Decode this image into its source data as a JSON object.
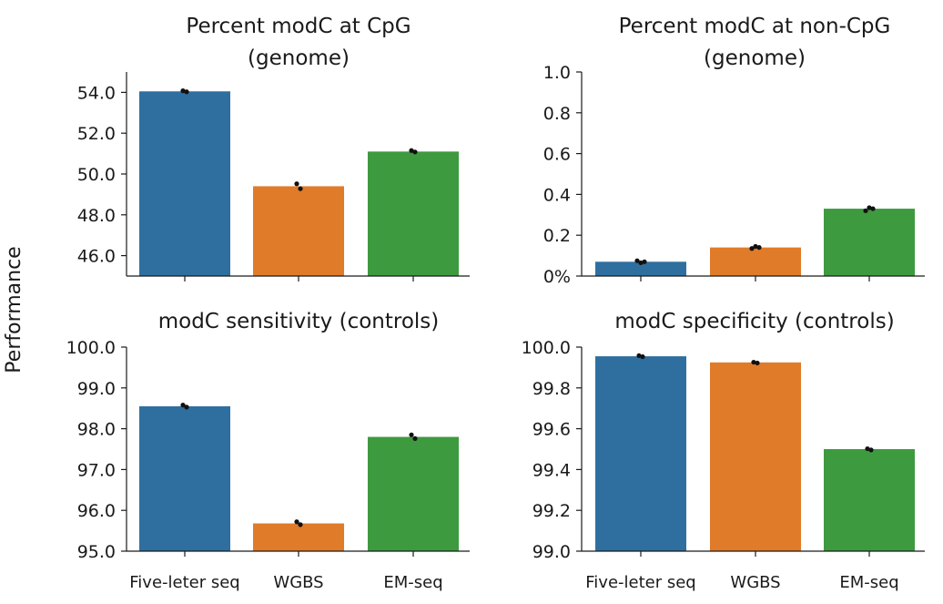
{
  "figure": {
    "ylabel": "Performance",
    "colors": {
      "Five-leter seq": "#2f6f9f",
      "WGBS": "#e07b2a",
      "EM-seq": "#3e9a3f"
    },
    "dot_color": "#111111"
  },
  "chart_data": [
    {
      "type": "bar",
      "title_lines": [
        "Percent modC at CpG",
        "(genome)"
      ],
      "categories": [
        "Five-leter seq",
        "WGBS",
        "EM-seq"
      ],
      "values": [
        54.05,
        49.4,
        51.1
      ],
      "points": [
        [
          54.08,
          54.03
        ],
        [
          49.52,
          49.28
        ],
        [
          51.15,
          51.08
        ]
      ],
      "ylim": [
        45.0,
        55.0
      ],
      "yticks": [
        46.0,
        48.0,
        50.0,
        52.0,
        54.0
      ],
      "ytick_labels": [
        "46.0",
        "48.0",
        "50.0",
        "52.0",
        "54.0"
      ],
      "show_xticklabels": false
    },
    {
      "type": "bar",
      "title_lines": [
        "Percent modC at non-CpG",
        "(genome)"
      ],
      "categories": [
        "Five-leter seq",
        "WGBS",
        "EM-seq"
      ],
      "values": [
        0.07,
        0.14,
        0.33
      ],
      "points": [
        [
          0.075,
          0.065,
          0.07
        ],
        [
          0.135,
          0.145,
          0.14
        ],
        [
          0.32,
          0.335,
          0.33
        ]
      ],
      "ylim": [
        0,
        1.0
      ],
      "yticks": [
        0,
        0.2,
        0.4,
        0.6,
        0.8,
        1.0
      ],
      "ytick_labels": [
        "0%",
        "0.2",
        "0.4",
        "0.6",
        "0.8",
        "1.0"
      ],
      "show_xticklabels": false
    },
    {
      "type": "bar",
      "title_lines": [
        "modC sensitivity (controls)"
      ],
      "categories": [
        "Five-leter seq",
        "WGBS",
        "EM-seq"
      ],
      "values": [
        98.55,
        95.68,
        97.8
      ],
      "points": [
        [
          98.58,
          98.53
        ],
        [
          95.72,
          95.65
        ],
        [
          97.85,
          97.76
        ]
      ],
      "ylim": [
        95.0,
        100.0
      ],
      "yticks": [
        95.0,
        96.0,
        97.0,
        98.0,
        99.0,
        100.0
      ],
      "ytick_labels": [
        "95.0",
        "96.0",
        "97.0",
        "98.0",
        "99.0",
        "100.0"
      ],
      "show_xticklabels": true
    },
    {
      "type": "bar",
      "title_lines": [
        "modC specificity (controls)"
      ],
      "categories": [
        "Five-leter seq",
        "WGBS",
        "EM-seq"
      ],
      "values": [
        99.955,
        99.925,
        99.5
      ],
      "points": [
        [
          99.958,
          99.953
        ],
        [
          99.926,
          99.922
        ],
        [
          99.502,
          99.496
        ]
      ],
      "ylim": [
        99.0,
        100.0
      ],
      "yticks": [
        99.0,
        99.2,
        99.4,
        99.6,
        99.8,
        100.0
      ],
      "ytick_labels": [
        "99.0",
        "99.2",
        "99.4",
        "99.6",
        "99.8",
        "100.0"
      ],
      "show_xticklabels": true
    }
  ]
}
